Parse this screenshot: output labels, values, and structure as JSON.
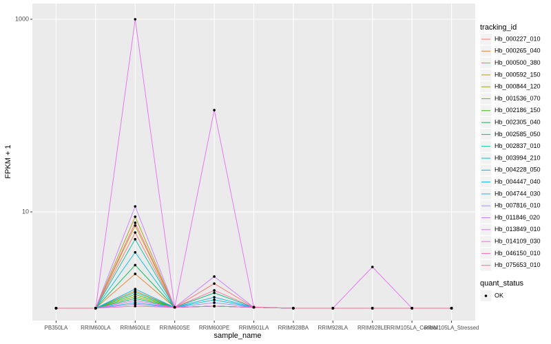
{
  "chart_data": {
    "type": "line",
    "x_label": "sample_name",
    "y_label": "FPKM + 1",
    "categories": [
      "PB350LA",
      "RRIM600LA",
      "RRIM600LE",
      "RRIM600SE",
      "RRIM600PE",
      "RRIM901LA",
      "RRIM928BA",
      "RRIM928LA",
      "RRIM928LE",
      "RRIM105LA_Control",
      "RRIM105LA_Stressed"
    ],
    "log_scale": true,
    "ylim": [
      0.743,
      1460
    ],
    "yticks": [
      10,
      1000
    ],
    "grid": true,
    "legend_title": "tracking_id",
    "point_legend_title": "quant_status",
    "point_legend_item": "OK",
    "point_color": "#000000",
    "series": [
      {
        "name": "Hb_000227_010",
        "color": "#F8766D",
        "values": [
          1,
          1,
          6.1,
          1.02,
          1.8,
          1.02,
          1,
          1,
          1,
          1,
          1
        ]
      },
      {
        "name": "Hb_000265_040",
        "color": "#EA8331",
        "values": [
          1,
          1,
          2.27,
          1.02,
          1.05,
          1.02,
          1,
          1,
          1,
          1,
          1
        ]
      },
      {
        "name": "Hb_000500_380",
        "color": "#D89000",
        "values": [
          1,
          1,
          1.51,
          1.02,
          1.05,
          1.02,
          1,
          1,
          1,
          1,
          1
        ]
      },
      {
        "name": "Hb_000592_150",
        "color": "#C09B00",
        "values": [
          1,
          1,
          7.2,
          1.02,
          1.05,
          1.02,
          1,
          1,
          1,
          1,
          1
        ]
      },
      {
        "name": "Hb_000844_120",
        "color": "#A3A500",
        "values": [
          1,
          1,
          8.9,
          1.02,
          1.05,
          1.02,
          1,
          1,
          1,
          1,
          1
        ]
      },
      {
        "name": "Hb_001536_070",
        "color": "#7CAE00",
        "values": [
          1,
          1,
          1.32,
          1.02,
          1.05,
          1.02,
          1,
          1,
          1,
          1,
          1
        ]
      },
      {
        "name": "Hb_002186_150",
        "color": "#39B600",
        "values": [
          1,
          1,
          1.39,
          1.02,
          1.05,
          1.02,
          1,
          1,
          1,
          1,
          1
        ]
      },
      {
        "name": "Hb_002305_040",
        "color": "#00BB4E",
        "values": [
          1,
          1,
          2.8,
          1.02,
          1.05,
          1.02,
          1,
          1,
          1,
          1,
          1
        ]
      },
      {
        "name": "Hb_002585_050",
        "color": "#00BF7D",
        "values": [
          1,
          1,
          1.26,
          1.02,
          1.44,
          1.02,
          1,
          1,
          1,
          1,
          1
        ]
      },
      {
        "name": "Hb_002837_010",
        "color": "#00C1A3",
        "values": [
          1,
          1,
          5.2,
          1.02,
          1.05,
          1.02,
          1,
          1,
          1,
          1,
          1
        ]
      },
      {
        "name": "Hb_003994_210",
        "color": "#00BFC4",
        "values": [
          1,
          1,
          1.46,
          1.02,
          1.05,
          1.02,
          1,
          1,
          1,
          1,
          1
        ]
      },
      {
        "name": "Hb_004228_050",
        "color": "#00BAE0",
        "values": [
          1,
          1,
          3.8,
          1.02,
          1.22,
          1.02,
          1,
          1,
          1,
          1,
          1
        ]
      },
      {
        "name": "Hb_004447_040",
        "color": "#00B0F6",
        "values": [
          1,
          1,
          1.58,
          1.02,
          1.3,
          1.02,
          1,
          1,
          1,
          1,
          1
        ]
      },
      {
        "name": "Hb_004744_030",
        "color": "#35A2FF",
        "values": [
          1,
          1,
          1.14,
          1.02,
          1.05,
          1.02,
          1,
          1,
          1,
          1,
          1
        ]
      },
      {
        "name": "Hb_007816_010",
        "color": "#9590FF",
        "values": [
          1,
          1,
          1.1,
          1.02,
          1.14,
          1.02,
          1,
          1,
          1,
          1,
          1
        ]
      },
      {
        "name": "Hb_011846_020",
        "color": "#C77CFF",
        "values": [
          1,
          1,
          11.4,
          1.02,
          2.13,
          1.02,
          1,
          1,
          1,
          1,
          1
        ]
      },
      {
        "name": "Hb_013849_010",
        "color": "#E76BF3",
        "values": [
          1,
          1,
          1000,
          1.02,
          114,
          1.03,
          1,
          1,
          2.68,
          1,
          1
        ]
      },
      {
        "name": "Hb_014109_030",
        "color": "#FA62DB",
        "values": [
          1,
          1,
          1.2,
          1.02,
          1.05,
          1.02,
          1,
          1,
          1,
          1,
          1
        ]
      },
      {
        "name": "Hb_046150_010",
        "color": "#FF62BC",
        "values": [
          1,
          1,
          1.05,
          1.02,
          1.05,
          1.02,
          1,
          1,
          1,
          1,
          1
        ]
      },
      {
        "name": "Hb_075653_010",
        "color": "#FF6C91",
        "values": [
          1,
          1,
          7.7,
          1.02,
          1.53,
          1.02,
          1,
          1,
          1,
          1,
          1
        ]
      }
    ]
  }
}
